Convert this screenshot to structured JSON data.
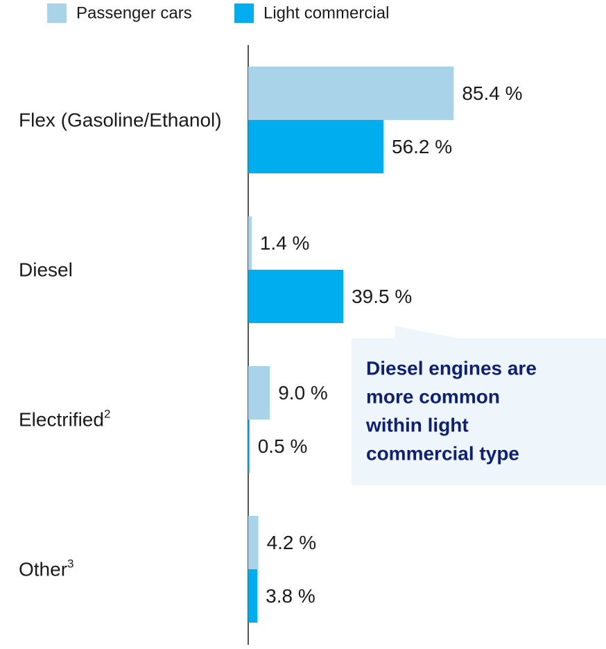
{
  "chart_data": {
    "type": "hbar",
    "categories": [
      "Flex (Gasoline/Ethanol)",
      "Diesel",
      "Electrified",
      "Other"
    ],
    "category_notes": [
      null,
      null,
      "2",
      "3"
    ],
    "series": [
      {
        "name": "Passenger cars",
        "color": "#a9d3e8",
        "values": [
          85.4,
          1.4,
          9.0,
          4.2
        ],
        "value_labels": [
          "85.4 %",
          "1.4 %",
          "9.0 %",
          "4.2 %"
        ]
      },
      {
        "name": "Light commercial",
        "color": "#00aeef",
        "values": [
          56.2,
          39.5,
          0.5,
          3.8
        ],
        "value_labels": [
          "56.2 %",
          "39.5 %",
          "0.5 %",
          "3.8 %"
        ]
      }
    ],
    "xlim": [
      0,
      100
    ],
    "annotation": [
      "Diesel engines are",
      "more common",
      "within light",
      "commercial type"
    ]
  }
}
